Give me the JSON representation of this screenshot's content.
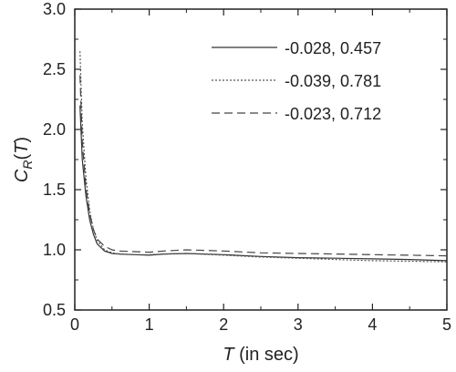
{
  "chart_data": {
    "type": "line",
    "title": "",
    "xlabel_var": "T",
    "xlabel_rest": " (in sec)",
    "ylabel_main": "C",
    "ylabel_sub": "R",
    "ylabel_open": "(",
    "ylabel_var": "T",
    "ylabel_close": ")",
    "xlim": [
      0,
      5
    ],
    "ylim": [
      0.5,
      3.0
    ],
    "xticks": [
      0,
      1,
      2,
      3,
      4,
      5
    ],
    "yticks": [
      0.5,
      1.0,
      1.5,
      2.0,
      2.5,
      3.0
    ],
    "xtick_labels": [
      "0",
      "1",
      "2",
      "3",
      "4",
      "5"
    ],
    "ytick_labels": [
      "0.5",
      "1.0",
      "1.5",
      "2.0",
      "2.5",
      "3.0"
    ],
    "grid": false,
    "legend_position": "top-right",
    "series": [
      {
        "name": "-0.028, 0.457",
        "style": "solid",
        "color": "#333333",
        "x": [
          0.07,
          0.1,
          0.15,
          0.2,
          0.25,
          0.3,
          0.4,
          0.5,
          0.6,
          0.8,
          1.0,
          1.2,
          1.5,
          2.0,
          2.5,
          3.0,
          3.5,
          4.0,
          4.5,
          5.0
        ],
        "y": [
          2.2,
          1.75,
          1.45,
          1.25,
          1.13,
          1.05,
          0.99,
          0.97,
          0.965,
          0.96,
          0.955,
          0.965,
          0.97,
          0.96,
          0.945,
          0.935,
          0.93,
          0.925,
          0.92,
          0.91
        ]
      },
      {
        "name": "-0.039, 0.781",
        "style": "dotted",
        "color": "#555555",
        "x": [
          0.07,
          0.1,
          0.15,
          0.2,
          0.25,
          0.3,
          0.4,
          0.5,
          0.6,
          0.8,
          1.0,
          1.2,
          1.5,
          2.0,
          2.5,
          3.0,
          3.5,
          4.0,
          4.5,
          5.0
        ],
        "y": [
          2.65,
          2.05,
          1.6,
          1.33,
          1.17,
          1.08,
          1.0,
          0.975,
          0.965,
          0.96,
          0.96,
          0.965,
          0.97,
          0.955,
          0.94,
          0.93,
          0.92,
          0.91,
          0.905,
          0.9
        ]
      },
      {
        "name": "-0.023, 0.712",
        "style": "dashed",
        "color": "#444444",
        "x": [
          0.07,
          0.1,
          0.15,
          0.2,
          0.25,
          0.3,
          0.4,
          0.5,
          0.6,
          0.8,
          1.0,
          1.2,
          1.5,
          2.0,
          2.5,
          3.0,
          3.5,
          4.0,
          4.5,
          5.0
        ],
        "y": [
          2.45,
          1.9,
          1.52,
          1.3,
          1.17,
          1.09,
          1.03,
          1.0,
          0.99,
          0.985,
          0.98,
          0.99,
          1.0,
          0.99,
          0.975,
          0.97,
          0.965,
          0.96,
          0.955,
          0.95
        ]
      }
    ]
  }
}
